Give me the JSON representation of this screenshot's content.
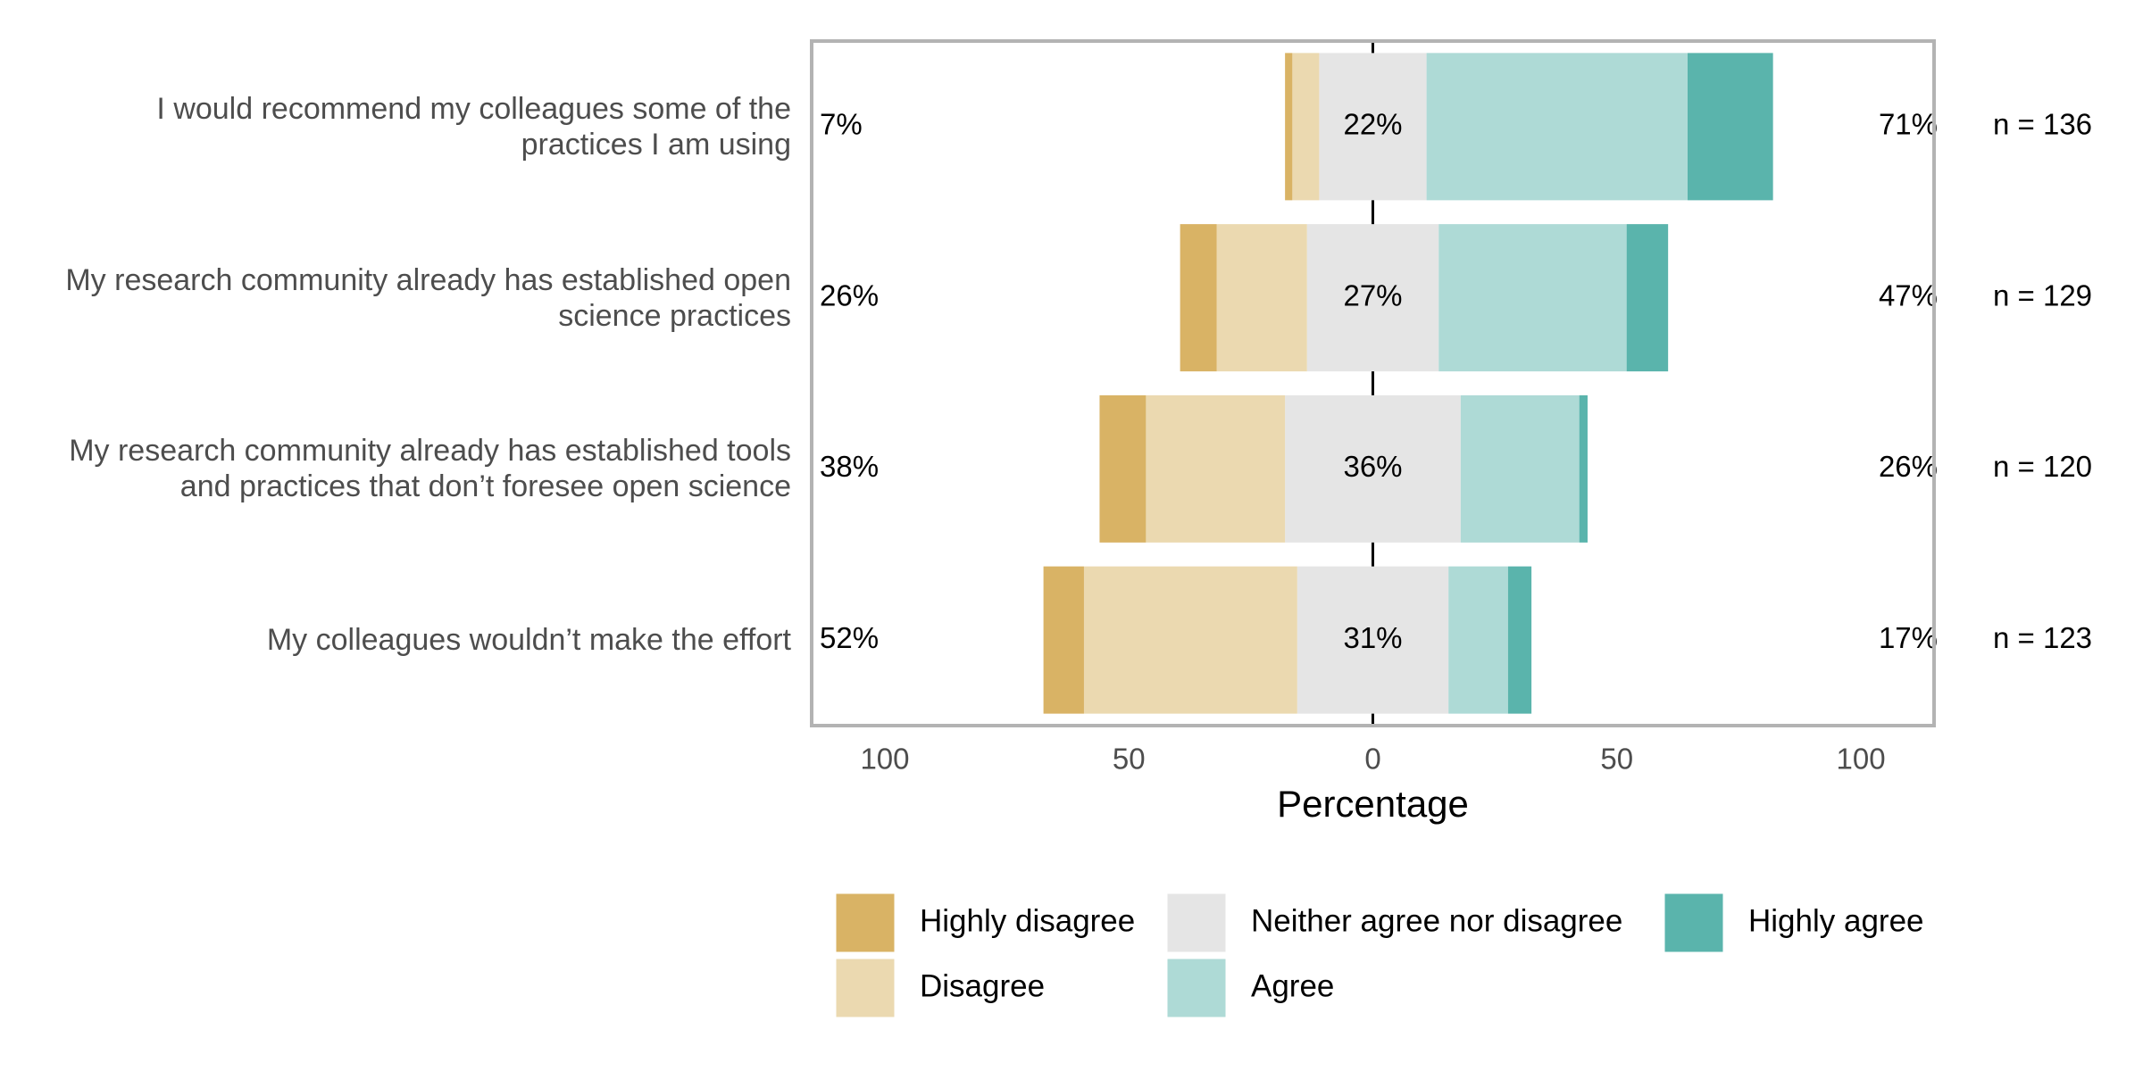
{
  "chart_data": {
    "type": "diverging-bar",
    "x_label": "Percentage",
    "categories": [
      "I would recommend my colleagues some of the practices I am using",
      "My research community already has established open science practices",
      "My research community already has established tools and practices that don’t foresee open science",
      "My colleagues wouldn’t make the effort"
    ],
    "series": [
      {
        "name": "Highly disagree",
        "color": "#d9b365",
        "values": [
          1.5,
          7.5,
          9.5,
          8.3
        ]
      },
      {
        "name": "Disagree",
        "color": "#ebd9b0",
        "values": [
          5.5,
          18.5,
          28.5,
          43.7
        ]
      },
      {
        "name": "Neither agree nor disagree",
        "color": "#e5e5e5",
        "values": [
          22,
          27,
          36,
          31
        ]
      },
      {
        "name": "Agree",
        "color": "#aedad6",
        "values": [
          53.5,
          38.5,
          24.3,
          12.2
        ]
      },
      {
        "name": "Highly agree",
        "color": "#5ab4ac",
        "values": [
          17.5,
          8.5,
          1.7,
          4.8
        ]
      }
    ],
    "left_labels": [
      "7%",
      "26%",
      "38%",
      "52%"
    ],
    "neutral_labels": [
      "22%",
      "27%",
      "36%",
      "31%"
    ],
    "right_labels": [
      "71%",
      "47%",
      "26%",
      "17%"
    ],
    "n_labels": [
      "n = 136",
      "n = 129",
      "n = 120",
      "n = 123"
    ],
    "xlim": [
      -115,
      115
    ],
    "xticks": [
      {
        "value": -100,
        "label": "100"
      },
      {
        "value": -50,
        "label": "50"
      },
      0,
      50,
      {
        "value": 100,
        "label": "100"
      }
    ],
    "grid": true
  }
}
